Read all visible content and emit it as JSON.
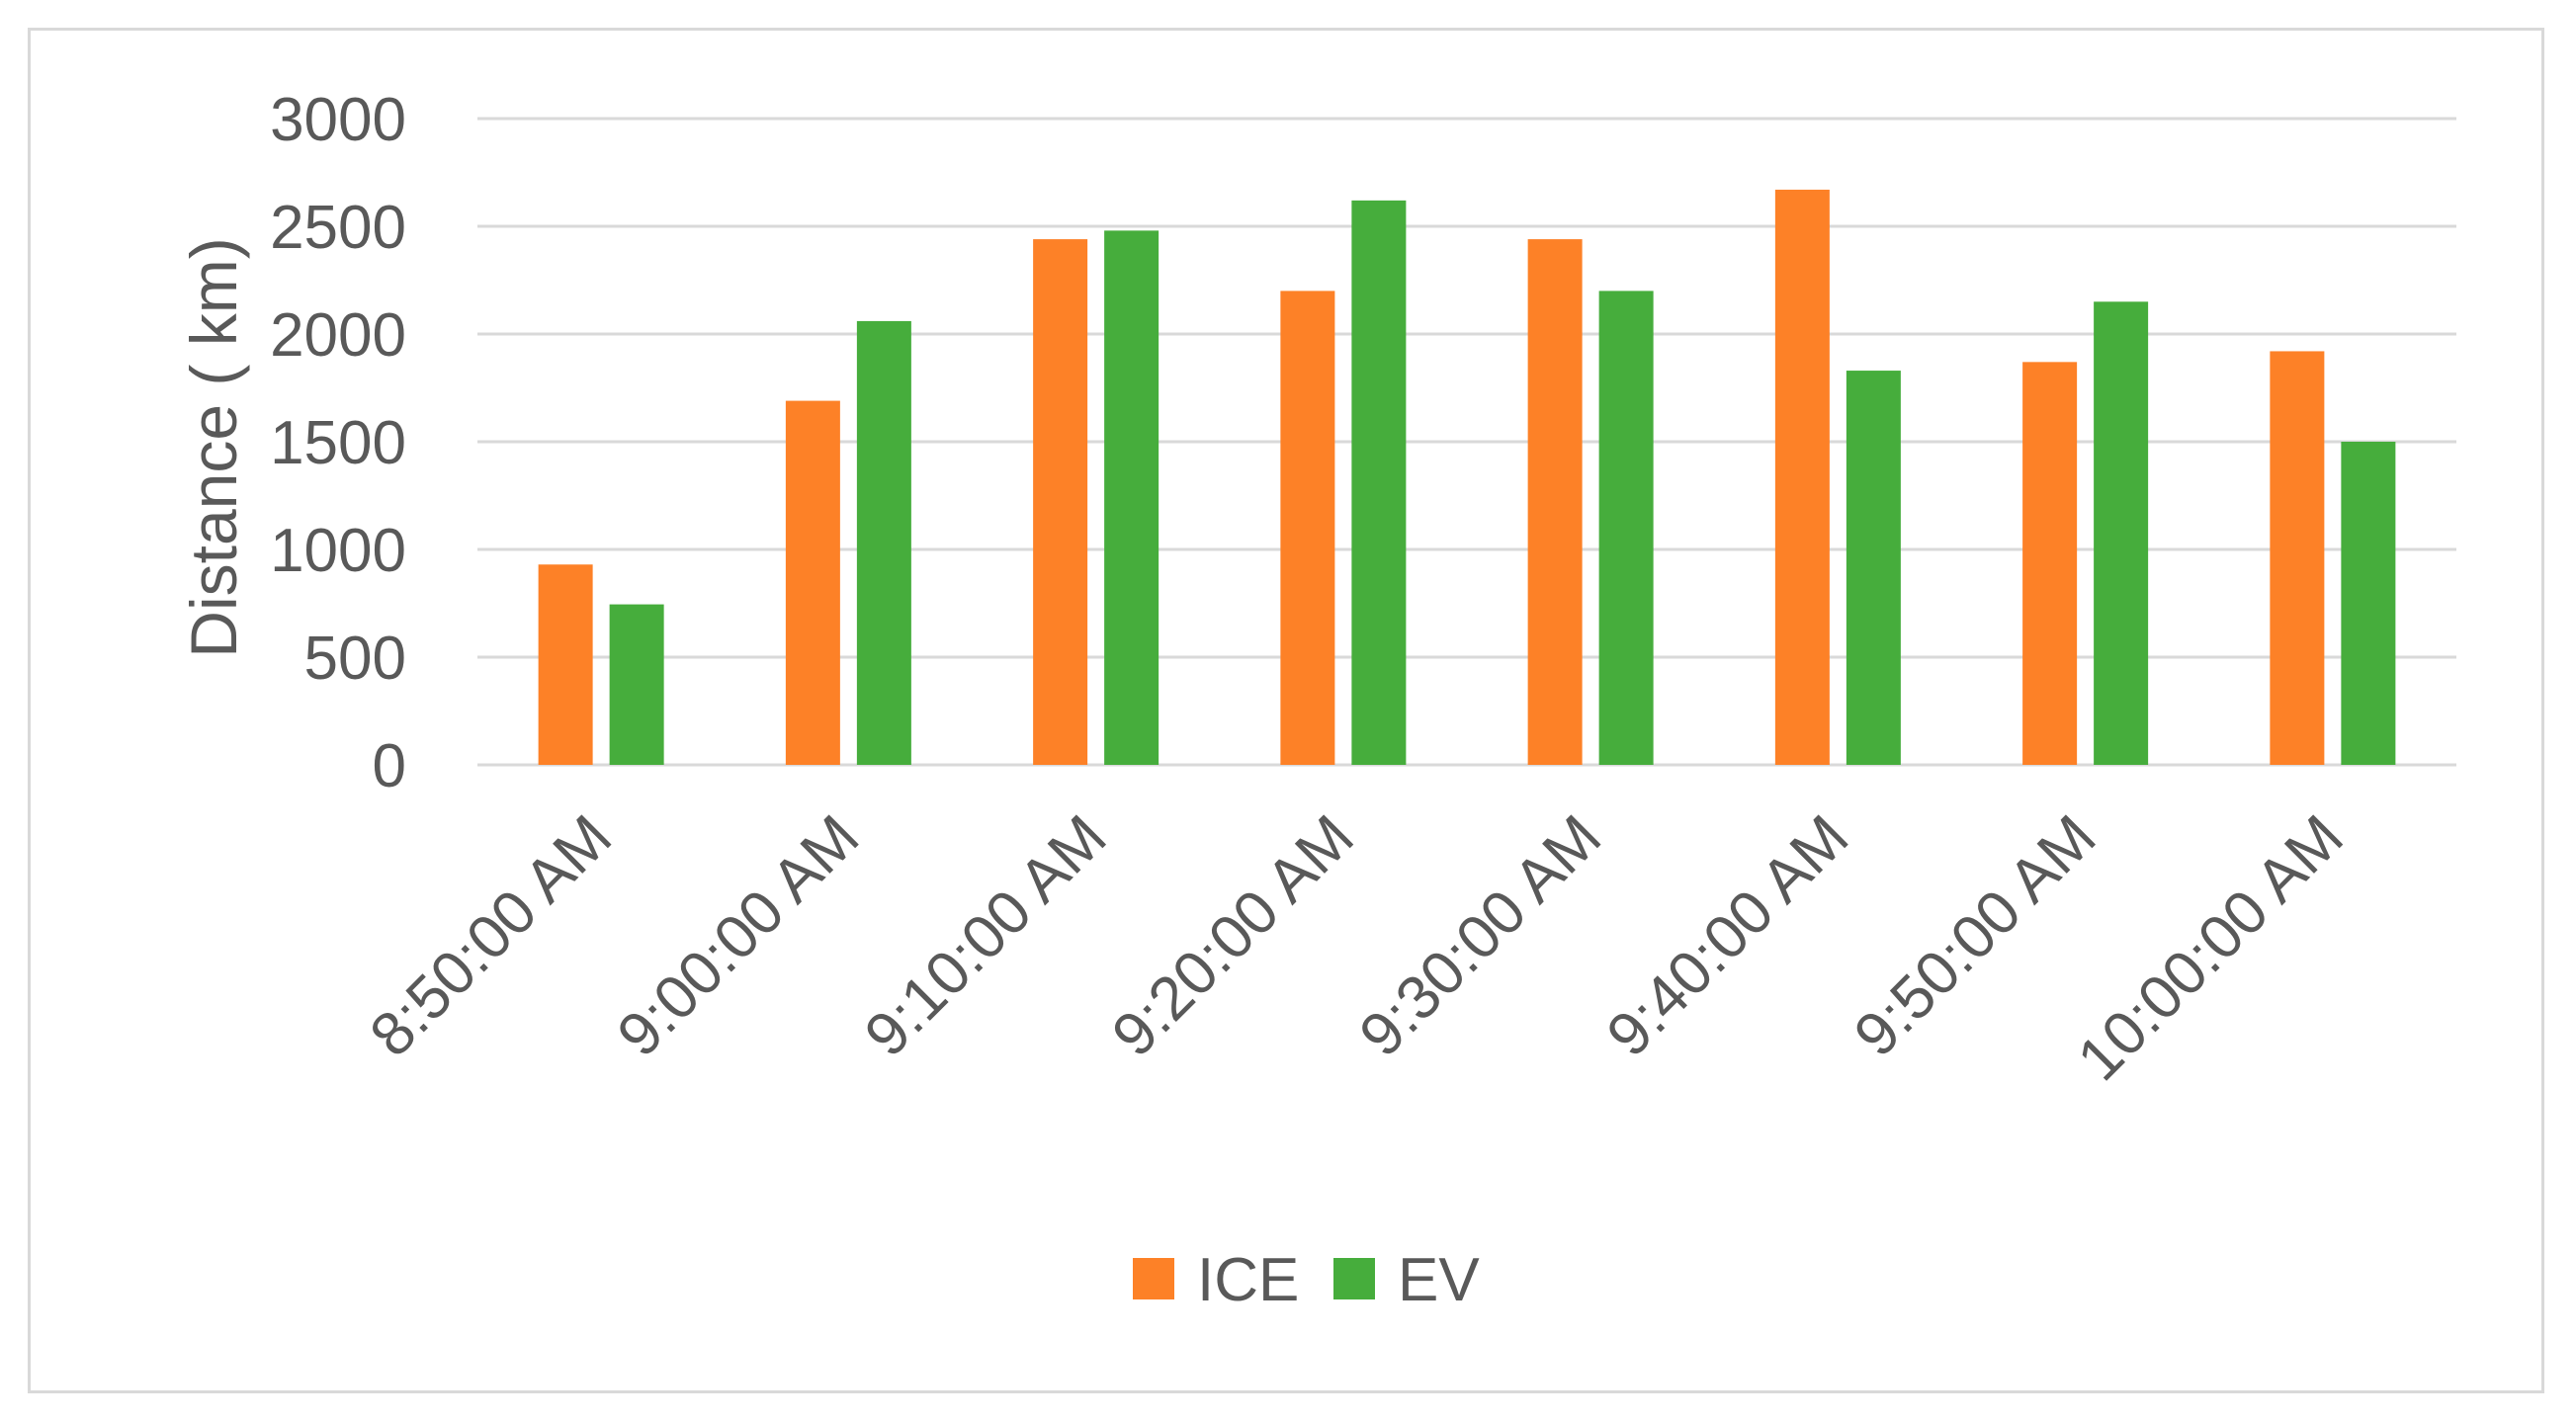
{
  "chart_data": {
    "type": "bar",
    "title": "",
    "xlabel": "",
    "ylabel": "Distance ( km)",
    "ylim": [
      0,
      3000
    ],
    "yticks": [
      0,
      500,
      1000,
      1500,
      2000,
      2500,
      3000
    ],
    "categories": [
      "8:50:00 AM",
      "9:00:00 AM",
      "9:10:00 AM",
      "9:20:00 AM",
      "9:30:00 AM",
      "9:40:00 AM",
      "9:50:00 AM",
      "10:00:00 AM"
    ],
    "series": [
      {
        "name": "ICE",
        "color": "#fd8127",
        "values": [
          930,
          1690,
          2440,
          2200,
          2440,
          2670,
          1870,
          1920
        ]
      },
      {
        "name": "EV",
        "color": "#46ad3c",
        "values": [
          745,
          2060,
          2480,
          2620,
          2200,
          1830,
          2150,
          1500
        ]
      }
    ],
    "grid": true,
    "gridColor": "#d9d9d9",
    "legend": "bottom"
  }
}
